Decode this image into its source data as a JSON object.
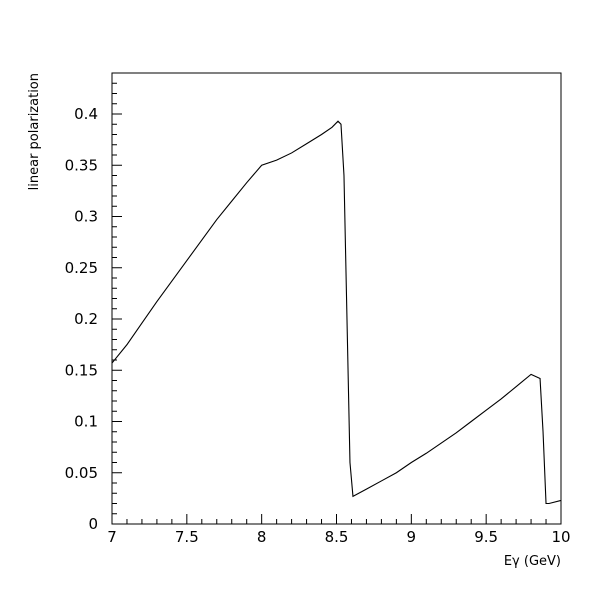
{
  "chart_data": {
    "type": "line",
    "title": "",
    "xlabel": "Eγ (GeV)",
    "ylabel": "linear polarization",
    "xlim": [
      7,
      10
    ],
    "ylim": [
      0,
      0.44
    ],
    "grid": false,
    "xticks": [
      7,
      7.5,
      8,
      8.5,
      9,
      9.5,
      10
    ],
    "xtick_labels": [
      "7",
      "7.5",
      "8",
      "8.5",
      "9",
      "9.5",
      "10"
    ],
    "yticks": [
      0,
      0.05,
      0.1,
      0.15,
      0.2,
      0.25,
      0.3,
      0.35,
      0.4
    ],
    "ytick_labels": [
      "0",
      "0.05",
      "0.1",
      "0.15",
      "0.2",
      "0.25",
      "0.3",
      "0.35",
      "0.4"
    ],
    "series": [
      {
        "x": [
          7.0,
          7.1,
          7.2,
          7.3,
          7.4,
          7.5,
          7.6,
          7.7,
          7.8,
          7.9,
          8.0,
          8.1,
          8.2,
          8.3,
          8.4,
          8.47,
          8.51,
          8.53,
          8.55,
          8.57,
          8.59,
          8.61,
          8.7,
          8.8,
          8.9,
          9.0,
          9.1,
          9.2,
          9.3,
          9.4,
          9.5,
          9.6,
          9.7,
          9.8,
          9.86,
          9.88,
          9.9,
          9.92,
          10.0
        ],
        "y": [
          0.157,
          0.175,
          0.196,
          0.217,
          0.237,
          0.257,
          0.277,
          0.297,
          0.315,
          0.333,
          0.35,
          0.355,
          0.362,
          0.371,
          0.38,
          0.387,
          0.393,
          0.39,
          0.34,
          0.2,
          0.06,
          0.027,
          0.034,
          0.042,
          0.05,
          0.06,
          0.069,
          0.079,
          0.089,
          0.1,
          0.111,
          0.122,
          0.134,
          0.146,
          0.142,
          0.09,
          0.02,
          0.02,
          0.023
        ]
      }
    ]
  }
}
